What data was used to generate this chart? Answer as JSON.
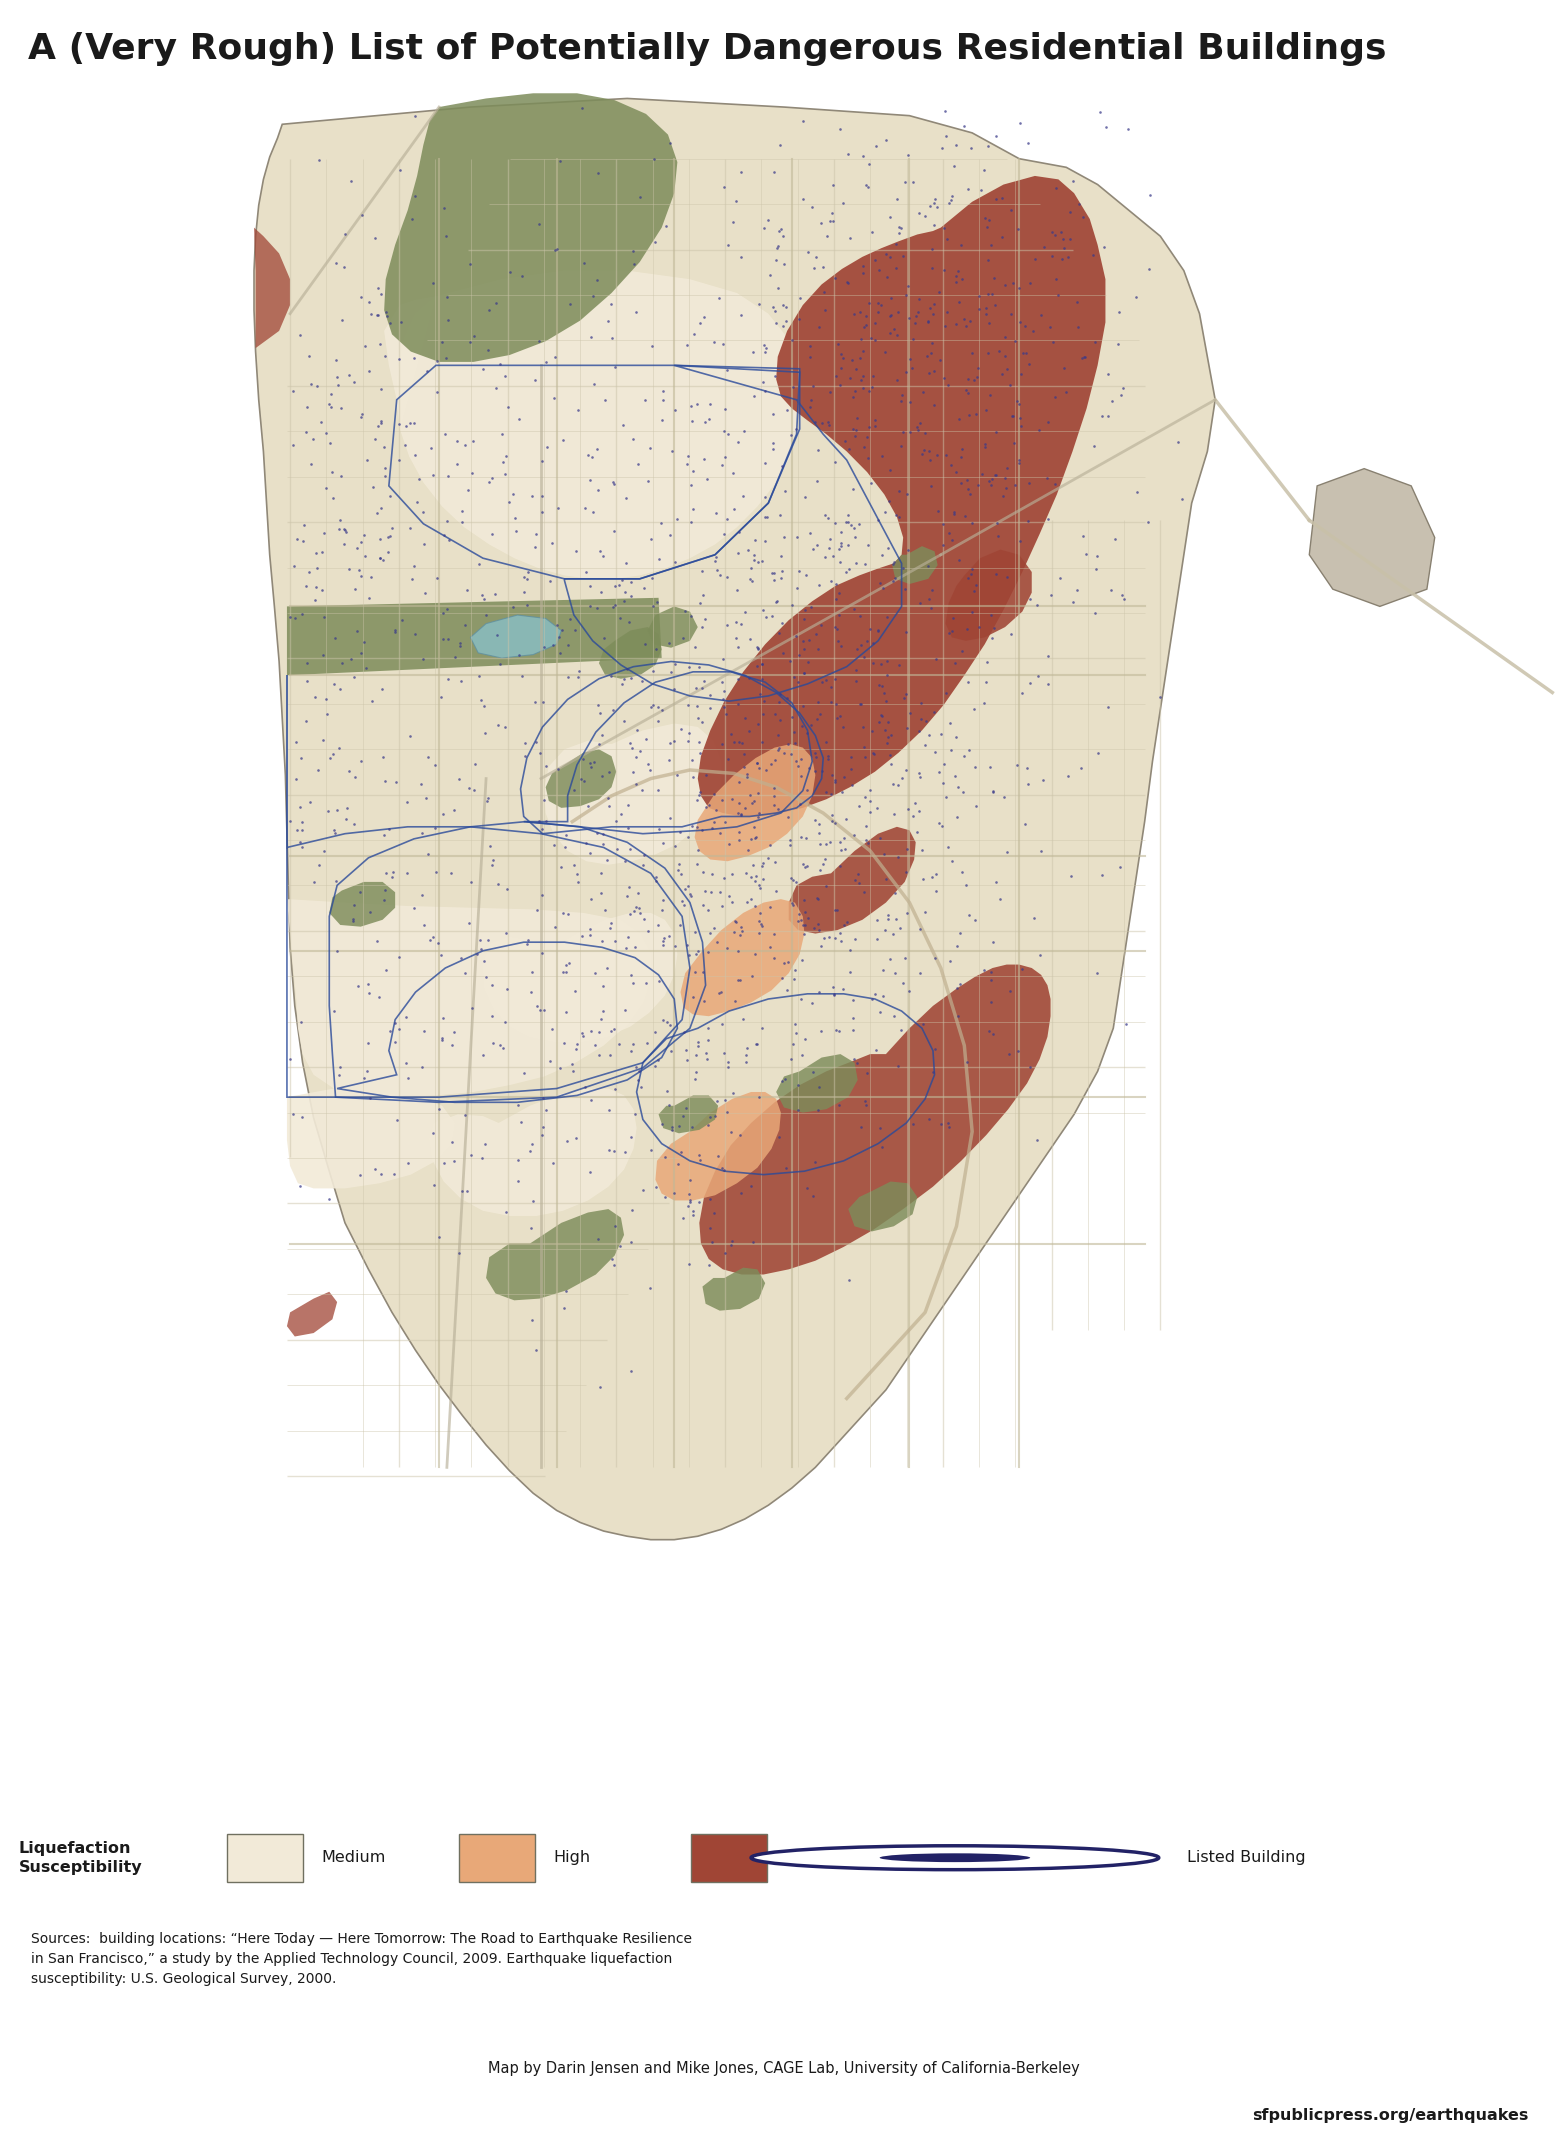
{
  "title": "A (Very Rough) List of Potentially Dangerous Residential Buildings",
  "title_fontsize": 26,
  "title_fontweight": "bold",
  "title_color": "#1a1a1a",
  "colors": {
    "ocean": "#aad4d5",
    "medium": "#f2ead8",
    "low_susceptibility": "#ddd8c8",
    "high": "#e8a878",
    "very_high": "#a04535",
    "park_dark": "#7d8c5a",
    "park_light": "#9aaa70",
    "building_dot": "#3a3a8a",
    "road_major": "#c8bfa0",
    "road_minor": "#d8d0b8",
    "boundary_blue": "#2a4a9a",
    "land_bg": "#e8e0c8",
    "gray_zone": "#c0bdb0",
    "oakland_bg": "#c8c0b0",
    "coast_line": "#a09880"
  },
  "legend_bg_color": "#c0bcb0",
  "footer_bg_color": "#b8b4a8",
  "source_text": "Sources:  building locations: “Here Today — Here Tomorrow: The Road to Earthquake Resilience\nin San Francisco,” a study by the Applied Technology Council, 2009. Earthquake liquefaction\nsusceptibility: U.S. Geological Survey, 2000.",
  "credit_text": "Map by Darin Jensen and Mike Jones, CAGE Lab, University of California-Berkeley",
  "url_text": "sfpublicpress.org/earthquakes",
  "legend_title": "Liquefaction\nSusceptibility"
}
